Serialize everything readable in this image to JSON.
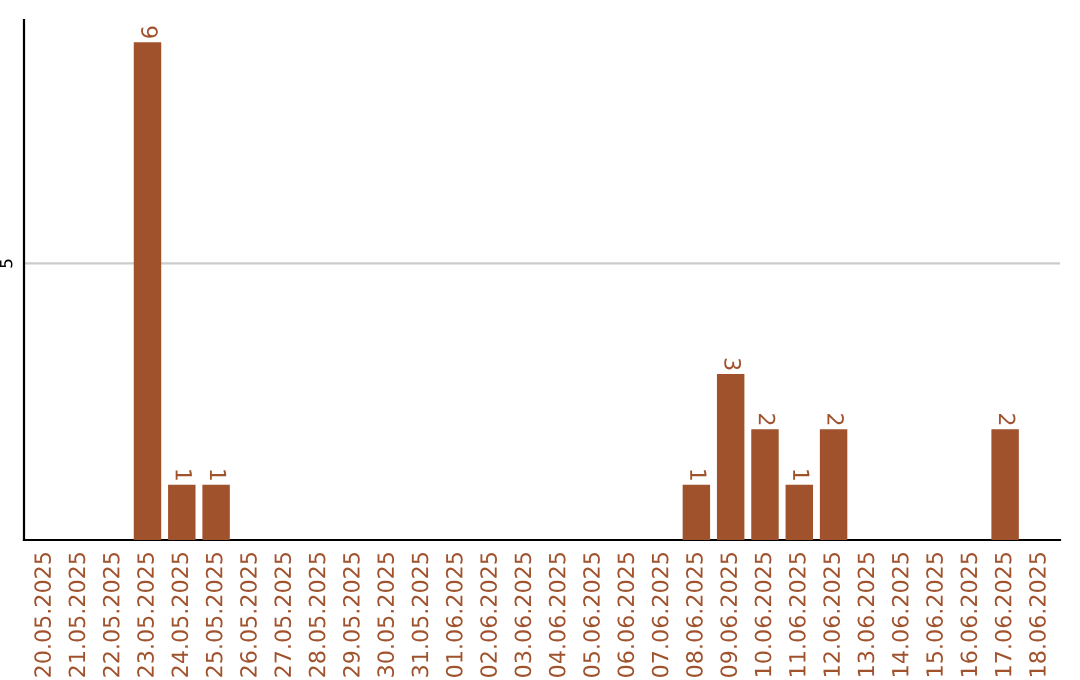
{
  "chart_data": {
    "type": "bar",
    "categories": [
      "20.05.2025",
      "21.05.2025",
      "22.05.2025",
      "23.05.2025",
      "24.05.2025",
      "25.05.2025",
      "26.05.2025",
      "27.05.2025",
      "28.05.2025",
      "29.05.2025",
      "30.05.2025",
      "31.05.2025",
      "01.06.2025",
      "02.06.2025",
      "03.06.2025",
      "04.06.2025",
      "05.06.2025",
      "06.06.2025",
      "07.06.2025",
      "08.06.2025",
      "09.06.2025",
      "10.06.2025",
      "11.06.2025",
      "12.06.2025",
      "13.06.2025",
      "14.06.2025",
      "15.06.2025",
      "16.06.2025",
      "17.06.2025",
      "18.06.2025"
    ],
    "values": [
      0,
      0,
      0,
      9,
      1,
      1,
      0,
      0,
      0,
      0,
      0,
      0,
      0,
      0,
      0,
      0,
      0,
      0,
      0,
      1,
      3,
      2,
      1,
      2,
      0,
      0,
      0,
      0,
      2,
      0
    ],
    "color": "#a0522d",
    "value_labels": [
      null,
      null,
      null,
      "9",
      "1",
      "1",
      null,
      null,
      null,
      null,
      null,
      null,
      null,
      null,
      null,
      null,
      null,
      null,
      null,
      "1",
      "3",
      "2",
      "1",
      "2",
      null,
      null,
      null,
      null,
      "2",
      null
    ],
    "ylim": [
      0,
      9.4
    ],
    "yticks": [
      5
    ],
    "grid": "y",
    "legend": false
  }
}
